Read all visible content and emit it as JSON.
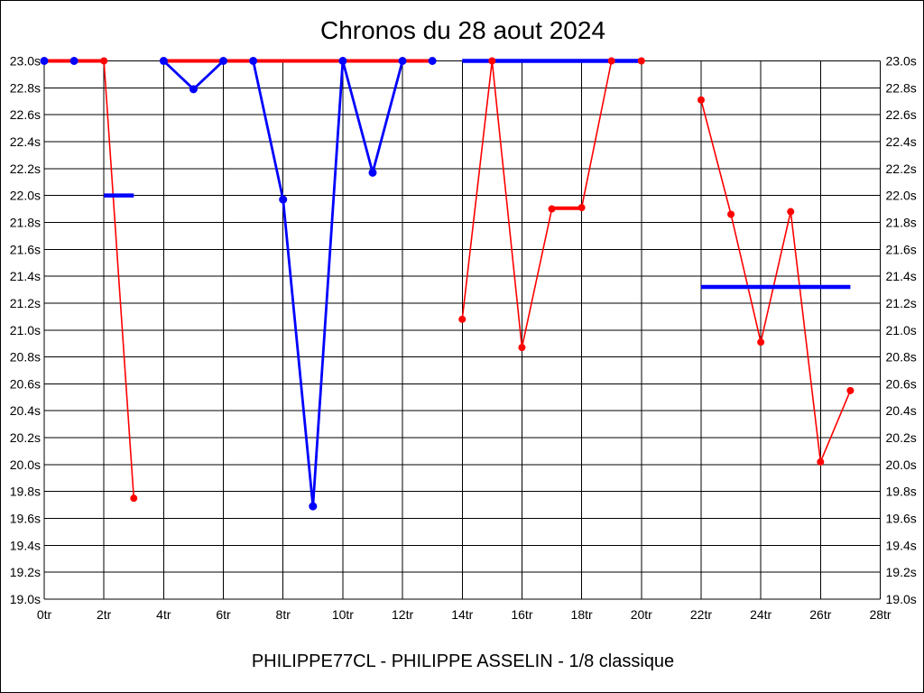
{
  "title": "Chronos du 28 aout 2024",
  "caption": "PHILIPPE77CL - PHILIPPE ASSELIN - 1/8 classique",
  "colors": {
    "red_series": "#ff0000",
    "blue_series": "#0000ff",
    "grid": "#000000",
    "background": "#ffffff",
    "text": "#000000"
  },
  "chart_data": {
    "type": "line",
    "title": "Chronos du 28 aout 2024",
    "xlabel": "",
    "ylabel": "",
    "x_unit": "tr",
    "y_unit": "s",
    "xlim": [
      0,
      28
    ],
    "ylim": [
      19.0,
      23.0
    ],
    "x_tick_step": 2,
    "y_tick_step": 0.2,
    "x_tick_labels": [
      "0tr",
      "2tr",
      "4tr",
      "6tr",
      "8tr",
      "10tr",
      "12tr",
      "14tr",
      "16tr",
      "18tr",
      "20tr",
      "22tr",
      "24tr",
      "26tr",
      "28tr"
    ],
    "y_tick_labels": [
      "23.0s",
      "22.8s",
      "22.6s",
      "22.4s",
      "22.2s",
      "22.0s",
      "21.8s",
      "21.6s",
      "21.4s",
      "21.2s",
      "21.0s",
      "20.8s",
      "20.6s",
      "20.4s",
      "20.2s",
      "20.0s",
      "19.8s",
      "19.6s",
      "19.4s",
      "19.2s",
      "19.0s"
    ],
    "grid": "on",
    "legend_position": "none",
    "series": [
      {
        "name": "red",
        "color": "#ff0000",
        "x": [
          0,
          1,
          2,
          3,
          4,
          5,
          6,
          7,
          8,
          9,
          10,
          11,
          12,
          13,
          14,
          15,
          16,
          17,
          18,
          19,
          20,
          21,
          22,
          23,
          24,
          25,
          26,
          27
        ],
        "values": [
          23.0,
          23.0,
          23.0,
          19.75,
          23.0,
          23.0,
          23.0,
          23.0,
          23.0,
          23.0,
          23.0,
          23.0,
          23.0,
          23.0,
          21.08,
          23.0,
          20.87,
          21.9,
          21.91,
          23.0,
          23.0,
          null,
          22.71,
          21.86,
          20.91,
          21.88,
          20.02,
          20.55
        ]
      },
      {
        "name": "blue",
        "color": "#0000ff",
        "x": [
          0,
          1,
          2,
          3,
          4,
          5,
          6,
          7,
          8,
          9,
          10,
          11,
          12,
          13,
          14,
          15,
          16,
          17,
          18,
          19,
          20,
          21,
          22,
          23,
          24,
          25,
          26,
          27
        ],
        "values": [
          23.0,
          23.0,
          22.0,
          22.0,
          23.0,
          22.79,
          23.0,
          23.0,
          21.97,
          19.69,
          23.0,
          22.17,
          23.0,
          23.0,
          23.0,
          23.0,
          23.0,
          23.0,
          23.0,
          23.0,
          23.0,
          null,
          21.32,
          21.32,
          21.32,
          21.32,
          21.32,
          21.32
        ]
      }
    ],
    "draw": {
      "red": {
        "thick_segments": [
          [
            0,
            2,
            23.0
          ],
          [
            4,
            13,
            23.0
          ],
          [
            17,
            18,
            21.905
          ]
        ],
        "thin_polylines": [
          [
            [
              2,
              23.0
            ],
            [
              3,
              19.75
            ]
          ],
          [
            [
              14,
              21.08
            ],
            [
              15,
              23.0
            ],
            [
              16,
              20.87
            ],
            [
              17,
              21.9
            ]
          ],
          [
            [
              18,
              21.91
            ],
            [
              19,
              23.0
            ]
          ],
          [
            [
              22,
              22.71
            ],
            [
              23,
              21.86
            ],
            [
              24,
              20.91
            ],
            [
              25,
              21.88
            ],
            [
              26,
              20.02
            ],
            [
              27,
              20.55
            ]
          ]
        ],
        "points": [
          [
            2,
            23.0
          ],
          [
            3,
            19.75
          ],
          [
            14,
            21.08
          ],
          [
            15,
            23.0
          ],
          [
            16,
            20.87
          ],
          [
            17,
            21.9
          ],
          [
            18,
            21.91
          ],
          [
            19,
            23.0
          ],
          [
            20,
            23.0
          ],
          [
            22,
            22.71
          ],
          [
            23,
            21.86
          ],
          [
            24,
            20.91
          ],
          [
            25,
            21.88
          ],
          [
            26,
            20.02
          ],
          [
            27,
            20.55
          ]
        ]
      },
      "blue": {
        "thick_segments": [
          [
            2,
            3,
            22.0
          ],
          [
            14,
            20,
            23.0
          ],
          [
            22,
            27,
            21.32
          ]
        ],
        "thin_polylines": [
          [
            [
              4,
              23.0
            ],
            [
              5,
              22.79
            ],
            [
              6,
              23.0
            ]
          ],
          [
            [
              7,
              23.0
            ],
            [
              8,
              21.97
            ],
            [
              9,
              19.69
            ],
            [
              10,
              23.0
            ],
            [
              11,
              22.17
            ],
            [
              12,
              23.0
            ]
          ]
        ],
        "points": [
          [
            0,
            23.0
          ],
          [
            1,
            23.0
          ],
          [
            4,
            23.0
          ],
          [
            5,
            22.79
          ],
          [
            6,
            23.0
          ],
          [
            7,
            23.0
          ],
          [
            8,
            21.97
          ],
          [
            9,
            19.69
          ],
          [
            10,
            23.0
          ],
          [
            11,
            22.17
          ],
          [
            12,
            23.0
          ],
          [
            13,
            23.0
          ]
        ]
      }
    }
  }
}
